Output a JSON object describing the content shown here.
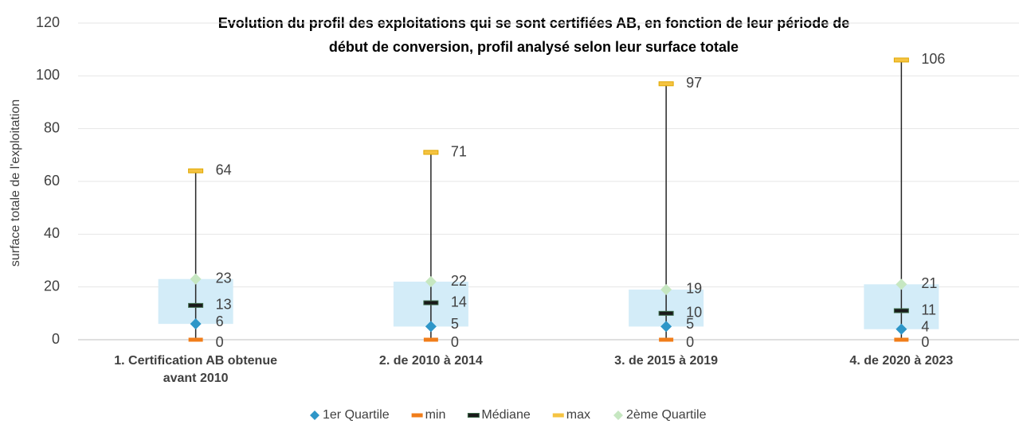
{
  "chart_data": {
    "type": "boxplot",
    "title": [
      "Evolution du profil des exploitations qui se sont certifiées AB, en fonction de leur période de",
      "début de conversion, profil analysé selon leur surface totale"
    ],
    "y_label": "surface totale de l'exploitation",
    "categories": [
      "1. Certification AB obtenue avant 2010",
      "2. de 2010 à 2014",
      "3. de 2015 à 2019",
      "4. de 2020 à 2023"
    ],
    "series": [
      {
        "name": "1er Quartile",
        "color": "#2e96c8",
        "values": [
          6,
          5,
          5,
          4
        ]
      },
      {
        "name": "min",
        "color": "#f07d1a",
        "values": [
          0,
          0,
          0,
          0
        ]
      },
      {
        "name": "Médiane",
        "color": "#3d6b4a",
        "values": [
          13,
          14,
          10,
          11
        ]
      },
      {
        "name": "max",
        "color": "#f5c342",
        "values": [
          64,
          71,
          97,
          106
        ]
      },
      {
        "name": "2ème Quartile",
        "color": "#c6e7c1",
        "values": [
          23,
          22,
          19,
          21
        ]
      }
    ],
    "box_color": "#d3ecf8",
    "ylim": [
      0,
      120
    ],
    "yticks": [
      0,
      20,
      40,
      60,
      80,
      100,
      120
    ],
    "grid": true
  }
}
